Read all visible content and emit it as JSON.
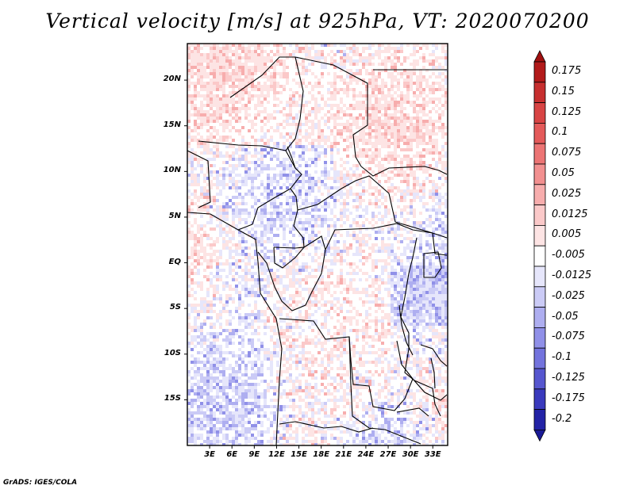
{
  "title": "Vertical velocity [m/s] at 925hPa, VT: 2020070200",
  "credit": "GrADS: IGES/COLA",
  "map": {
    "lat_range": [
      -20,
      24
    ],
    "lon_range": [
      0,
      35
    ],
    "lat_ticks": [
      {
        "value": 20,
        "label": "20N"
      },
      {
        "value": 15,
        "label": "15N"
      },
      {
        "value": 10,
        "label": "10N"
      },
      {
        "value": 5,
        "label": "5N"
      },
      {
        "value": 0,
        "label": "EQ"
      },
      {
        "value": -5,
        "label": "5S"
      },
      {
        "value": -10,
        "label": "10S"
      },
      {
        "value": -15,
        "label": "15S"
      }
    ],
    "lon_ticks": [
      {
        "value": 3,
        "label": "3E"
      },
      {
        "value": 6,
        "label": "6E"
      },
      {
        "value": 9,
        "label": "9E"
      },
      {
        "value": 12,
        "label": "12E"
      },
      {
        "value": 15,
        "label": "15E"
      },
      {
        "value": 18,
        "label": "18E"
      },
      {
        "value": 21,
        "label": "21E"
      },
      {
        "value": 24,
        "label": "24E"
      },
      {
        "value": 27,
        "label": "27E"
      },
      {
        "value": 30,
        "label": "30E"
      },
      {
        "value": 33,
        "label": "33E"
      }
    ]
  },
  "colorbar": {
    "levels": [
      {
        "label": "0.175",
        "color": "#b21a1a"
      },
      {
        "label": "0.15",
        "color": "#c72f2f"
      },
      {
        "label": "0.125",
        "color": "#d84444"
      },
      {
        "label": "0.1",
        "color": "#e45a5a"
      },
      {
        "label": "0.075",
        "color": "#ec7474"
      },
      {
        "label": "0.05",
        "color": "#f29090"
      },
      {
        "label": "0.025",
        "color": "#f7adad"
      },
      {
        "label": "0.0125",
        "color": "#fbc9c9"
      },
      {
        "label": "0.005",
        "color": "#fde4e4"
      },
      {
        "label": "-0.005",
        "color": "#ffffff"
      },
      {
        "label": "-0.0125",
        "color": "#e6e6fb"
      },
      {
        "label": "-0.025",
        "color": "#cbcbf6"
      },
      {
        "label": "-0.05",
        "color": "#aeaef0"
      },
      {
        "label": "-0.075",
        "color": "#9090e8"
      },
      {
        "label": "-0.1",
        "color": "#7373dd"
      },
      {
        "label": "-0.125",
        "color": "#5656cf"
      },
      {
        "label": "-0.175",
        "color": "#3a3abd"
      },
      {
        "label": "-0.2",
        "color": "#2323a6"
      }
    ],
    "top_arrow_color": "#a01010",
    "bottom_arrow_color": "#1a1a96",
    "white_band_color": "#ffffff"
  }
}
